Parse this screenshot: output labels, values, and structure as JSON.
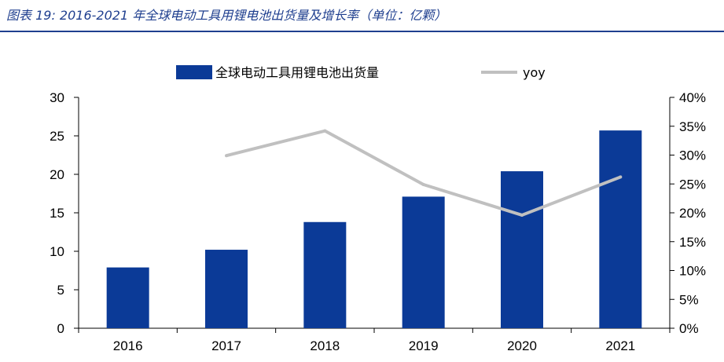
{
  "figure": {
    "title": "图表 19:  2016-2021 年全球电动工具用锂电池出货量及增长率（单位：亿颗）",
    "accent_color": "#1f3f8f"
  },
  "chart_data": {
    "type": "bar",
    "categories": [
      "2016",
      "2017",
      "2018",
      "2019",
      "2020",
      "2021"
    ],
    "series": [
      {
        "name": "全球电动工具用锂电池出货量",
        "type": "bar",
        "axis": "left",
        "color": "#0b3a97",
        "values": [
          7.9,
          10.2,
          13.8,
          17.1,
          20.4,
          25.7
        ]
      },
      {
        "name": "yoy",
        "type": "line",
        "axis": "right",
        "color": "#c0c0c0",
        "values": [
          null,
          29.9,
          34.2,
          24.9,
          19.6,
          26.2
        ]
      }
    ],
    "ylim": [
      0,
      30
    ],
    "y_ticks": [
      "0",
      "5",
      "10",
      "15",
      "20",
      "25",
      "30"
    ],
    "y2lim": [
      0,
      40
    ],
    "y2_ticks": [
      "0%",
      "5%",
      "10%",
      "15%",
      "20%",
      "25%",
      "30%",
      "35%",
      "40%"
    ],
    "legend": "top-center",
    "grid": false
  }
}
